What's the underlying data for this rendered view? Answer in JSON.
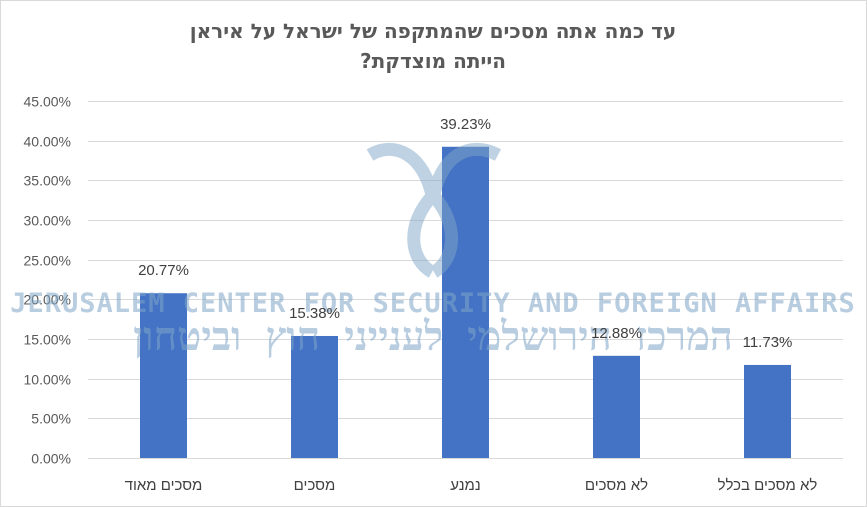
{
  "chart_data": {
    "type": "bar",
    "title_lines": [
      "עד כמה אתה מסכים שהמתקפה של ישראל על איראן",
      "הייתה מוצדקת?"
    ],
    "categories": [
      "מסכים מאוד",
      "מסכים",
      "נמנע",
      "לא מסכים",
      "לא מסכים בכלל"
    ],
    "values": [
      20.77,
      15.38,
      39.23,
      12.88,
      11.73
    ],
    "data_labels": [
      "20.77%",
      "15.38%",
      "39.23%",
      "12.88%",
      "11.73%"
    ],
    "ylim": [
      0,
      45
    ],
    "yticks": [
      0,
      5,
      10,
      15,
      20,
      25,
      30,
      35,
      40,
      45
    ],
    "ytick_labels": [
      "0.00%",
      "5.00%",
      "10.00%",
      "15.00%",
      "20.00%",
      "25.00%",
      "30.00%",
      "35.00%",
      "40.00%",
      "45.00%"
    ],
    "grid": true,
    "legend": "none",
    "bar_color": "#4472c4",
    "grid_color": "#d9d9d9"
  },
  "watermark": {
    "english": "JERUSALEM CENTER FOR SECURITY AND FOREIGN AFFAIRS",
    "hebrew": "המרכז הירושלמי לענייני חוץ וביטחון",
    "color": "#7fa6c8"
  }
}
